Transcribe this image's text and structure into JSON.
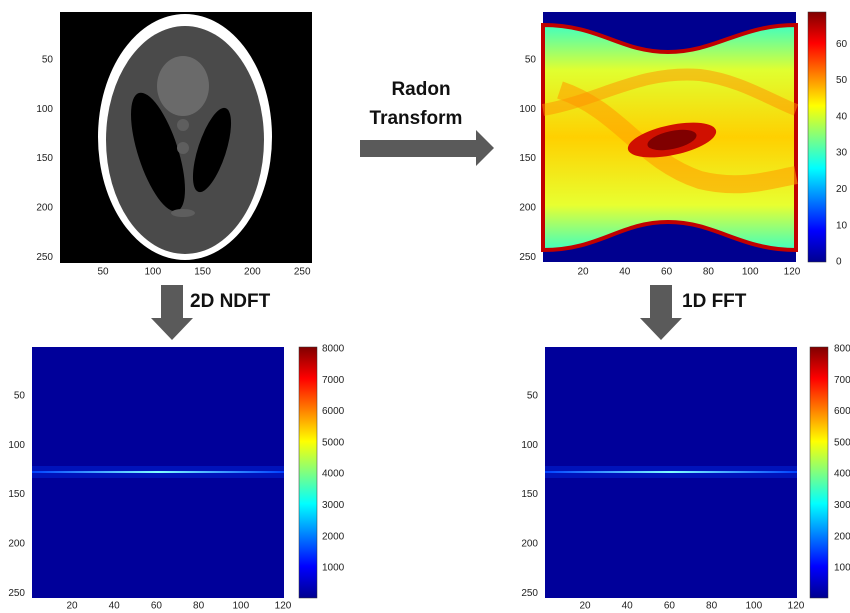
{
  "panels": [
    {
      "xticks": [
        50,
        100,
        150,
        200,
        250
      ],
      "yticks": [
        50,
        100,
        150,
        200,
        250
      ]
    },
    {
      "xticks": [
        20,
        40,
        60,
        80,
        100,
        120
      ],
      "yticks": [
        50,
        100,
        150,
        200,
        250
      ],
      "colorbar_ticks": [
        0,
        10,
        20,
        30,
        40,
        50,
        60
      ]
    },
    {
      "xticks": [
        20,
        40,
        60,
        80,
        100,
        120
      ],
      "yticks": [
        50,
        100,
        150,
        200,
        250
      ],
      "colorbar_ticks": [
        1000,
        2000,
        3000,
        4000,
        5000,
        6000,
        7000,
        8000
      ]
    },
    {
      "xticks": [
        20,
        40,
        60,
        80,
        100,
        120
      ],
      "yticks": [
        50,
        100,
        150,
        200,
        250
      ],
      "colorbar_ticks": [
        100,
        200,
        300,
        400,
        500,
        600,
        700,
        800
      ]
    }
  ],
  "arrows": [
    {
      "label": [
        "Radon",
        "Transform"
      ]
    },
    {
      "label": "2D NDFT"
    },
    {
      "label": "1D FFT"
    }
  ]
}
